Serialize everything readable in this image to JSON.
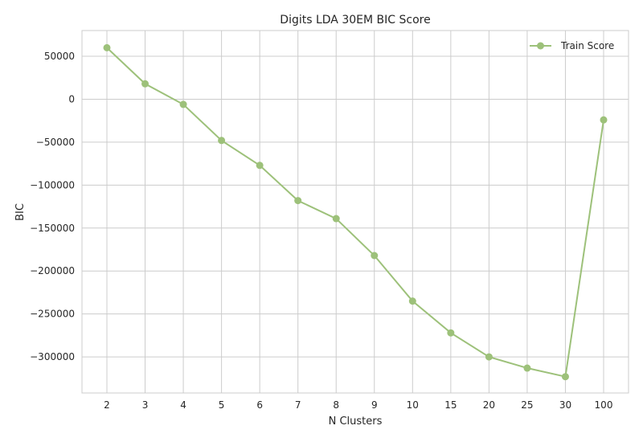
{
  "chart_data": {
    "type": "line",
    "title": "Digits LDA 30EM BIC Score",
    "xlabel": "N Clusters",
    "ylabel": "BIC",
    "categories": [
      "2",
      "3",
      "4",
      "5",
      "6",
      "7",
      "8",
      "9",
      "10",
      "15",
      "20",
      "25",
      "30",
      "100"
    ],
    "series": [
      {
        "name": "Train Score",
        "color": "#9dc17a",
        "values": [
          60000,
          18000,
          -6000,
          -48000,
          -77000,
          -118000,
          -139000,
          -182000,
          -235000,
          -272000,
          -300000,
          -313000,
          -323000,
          -24000
        ]
      }
    ],
    "ylim": [
      -342000,
      80000
    ],
    "yticks": [
      50000,
      0,
      -50000,
      -100000,
      -150000,
      -200000,
      -250000,
      -300000
    ],
    "ytick_labels": [
      "50000",
      "0",
      "−50000",
      "−100000",
      "−150000",
      "−200000",
      "−250000",
      "−300000"
    ],
    "grid": true,
    "legend_position": "top-right"
  }
}
